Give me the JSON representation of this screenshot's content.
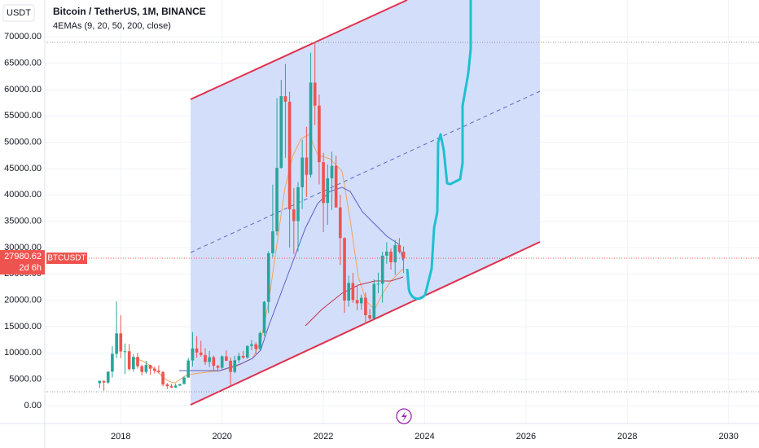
{
  "chart_data": {
    "type": "candlestick",
    "currency": "USDT",
    "title": "Bitcoin / TetherUS, 1M, BINANCE",
    "subtitle": "4EMAs (9, 20, 50, 200, close)",
    "symbol": "BTCUSDT",
    "countdown": "2d 6h",
    "last_price": 27980.62,
    "up_color": "#26a69a",
    "down_color": "#ef5350",
    "grid": true,
    "xlim": [
      2016.5,
      2030.6
    ],
    "ylim": [
      -3400,
      77000
    ],
    "xticks": [
      2018,
      2020,
      2022,
      2024,
      2026,
      2028,
      2030
    ],
    "yticks": [
      {
        "value": 0,
        "label": "0.00"
      },
      {
        "value": 5000,
        "label": "5000.00"
      },
      {
        "value": 10000,
        "label": "10000.00"
      },
      {
        "value": 15000,
        "label": "15000.00"
      },
      {
        "value": 20000,
        "label": "20000.00"
      },
      {
        "value": 25000,
        "label": "25000.00"
      },
      {
        "value": 30000,
        "label": "30000.00"
      },
      {
        "value": 35000,
        "label": "35000.00"
      },
      {
        "value": 40000,
        "label": "40000.00"
      },
      {
        "value": 45000,
        "label": "45000.00"
      },
      {
        "value": 50000,
        "label": "50000.00"
      },
      {
        "value": 55000,
        "label": "55000.00"
      },
      {
        "value": 60000,
        "label": "60000.00"
      },
      {
        "value": 65000,
        "label": "65000.00"
      },
      {
        "value": 70000,
        "label": "70000.00"
      }
    ],
    "x": [
      2017.583,
      2017.667,
      2017.75,
      2017.833,
      2017.917,
      2018,
      2018.083,
      2018.167,
      2018.25,
      2018.333,
      2018.417,
      2018.5,
      2018.583,
      2018.667,
      2018.75,
      2018.833,
      2018.917,
      2019,
      2019.083,
      2019.167,
      2019.25,
      2019.333,
      2019.417,
      2019.5,
      2019.583,
      2019.667,
      2019.75,
      2019.833,
      2019.917,
      2020,
      2020.083,
      2020.167,
      2020.25,
      2020.333,
      2020.417,
      2020.5,
      2020.583,
      2020.667,
      2020.75,
      2020.833,
      2020.917,
      2021,
      2021.083,
      2021.167,
      2021.25,
      2021.333,
      2021.417,
      2021.5,
      2021.583,
      2021.667,
      2021.75,
      2021.833,
      2021.917,
      2022,
      2022.083,
      2022.167,
      2022.25,
      2022.333,
      2022.417,
      2022.5,
      2022.583,
      2022.667,
      2022.75,
      2022.833,
      2022.917,
      2023,
      2023.083,
      2023.167,
      2023.25,
      2023.333,
      2023.417,
      2023.5,
      2023.583
    ],
    "open": [
      4261,
      4690,
      4378,
      6463,
      9838,
      13716,
      10285,
      10326,
      6923,
      9247,
      7494,
      6391,
      7730,
      7011,
      6626,
      6371,
      4041,
      3702,
      3434,
      3813,
      4103,
      5320,
      8574,
      10854,
      10085,
      9630,
      8293,
      9199,
      7546,
      7195,
      9352,
      8523,
      6410,
      8624,
      9446,
      9138,
      11335,
      11650,
      10776,
      13791,
      19695,
      28923,
      33092,
      45135,
      58740,
      57694,
      37253,
      35045,
      41461,
      47100,
      43824,
      61318,
      56950,
      46216,
      38466,
      43160,
      45510,
      37630,
      31801,
      19942,
      23293,
      20050,
      19423,
      20490,
      17164,
      16542,
      23125,
      23141,
      28465,
      29233,
      27210,
      30472,
      29232
    ],
    "high": [
      4745,
      4789,
      6470,
      11300,
      19798,
      17176,
      11786,
      11700,
      9759,
      10020,
      7760,
      8507,
      7750,
      7410,
      7680,
      6600,
      4312,
      4140,
      4200,
      4140,
      5600,
      9074,
      13970,
      13200,
      12325,
      10905,
      10370,
      9505,
      7750,
      9578,
      10500,
      9188,
      9468,
      10067,
      10380,
      11444,
      12468,
      12050,
      14100,
      19863,
      29300,
      41950,
      58352,
      61844,
      64854,
      59592,
      41330,
      42448,
      50500,
      52920,
      67000,
      69000,
      59053,
      47990,
      45821,
      48189,
      47444,
      40023,
      31986,
      24668,
      25211,
      22799,
      21085,
      21480,
      18387,
      23960,
      25250,
      29184,
      31000,
      29820,
      31431,
      31804,
      30200
    ],
    "low": [
      3400,
      2817,
      4110,
      5325,
      9000,
      9035,
      6000,
      6600,
      6430,
      7032,
      5750,
      6070,
      5880,
      6100,
      6200,
      3652,
      3156,
      3349,
      3400,
      3700,
      4080,
      5320,
      7440,
      9100,
      9320,
      7710,
      7300,
      6515,
      6435,
      6871,
      8445,
      3782,
      6150,
      8117,
      8833,
      8893,
      10518,
      9825,
      10416,
      13195,
      17572,
      28130,
      32296,
      44950,
      47044,
      30000,
      28805,
      29278,
      37332,
      39600,
      43283,
      53256,
      42000,
      32917,
      34322,
      37155,
      37578,
      26700,
      17622,
      18781,
      19520,
      18125,
      18190,
      15476,
      16256,
      16499,
      21351,
      19549,
      26942,
      25811,
      24800,
      28861,
      25166
    ],
    "close": [
      4724,
      4378,
      6463,
      9838,
      13716,
      10285,
      10326,
      6923,
      9247,
      7494,
      6391,
      7730,
      7011,
      6626,
      6371,
      4041,
      3702,
      3434,
      3813,
      4103,
      5320,
      8574,
      10854,
      10085,
      9630,
      8293,
      9199,
      7546,
      7195,
      9352,
      8523,
      6410,
      8624,
      9446,
      9138,
      11335,
      11650,
      10776,
      13791,
      19695,
      28923,
      33092,
      45135,
      58740,
      57694,
      37253,
      35045,
      41461,
      47100,
      43824,
      61318,
      56950,
      46216,
      38466,
      43160,
      45510,
      37630,
      31801,
      19942,
      23293,
      20050,
      19423,
      20490,
      17164,
      16542,
      23125,
      23141,
      28465,
      29233,
      27210,
      30472,
      29232,
      27980.62
    ]
  }
}
